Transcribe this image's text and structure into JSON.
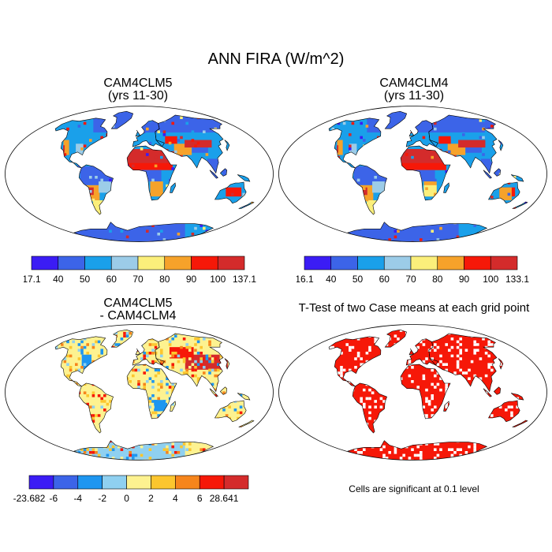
{
  "figure": {
    "title": "ANN FIRA (W/m^2)"
  },
  "panels": {
    "top_left": {
      "title_line1": "CAM4CLM5",
      "title_line2": "(yrs 11-30)"
    },
    "top_right": {
      "title_line1": "CAM4CLM4",
      "title_line2": "(yrs 11-30)"
    },
    "bottom_left": {
      "title_line1": "CAM4CLM5",
      "title_line2": "- CAM4CLM4"
    },
    "bottom_right": {
      "title": "T-Test of two Case means at each grid point",
      "note": "Cells are significant at 0.1 level"
    }
  },
  "colorbars": {
    "cb1": {
      "colors": [
        "#3b1cf5",
        "#3c64e8",
        "#1aa0ea",
        "#9ccce8",
        "#fbef7b",
        "#f6a22a",
        "#f61808",
        "#d42b2b"
      ],
      "labels": [
        "17.1",
        "40",
        "50",
        "60",
        "70",
        "80",
        "90",
        "100",
        "137.1"
      ]
    },
    "cb2": {
      "colors": [
        "#3b1cf5",
        "#3c64e8",
        "#1aa0ea",
        "#9ccce8",
        "#fbef7b",
        "#f6a22a",
        "#f61808",
        "#d42b2b"
      ],
      "labels": [
        "16.1",
        "40",
        "50",
        "60",
        "70",
        "80",
        "90",
        "100",
        "133.1"
      ]
    },
    "cb3": {
      "colors": [
        "#3b1cf5",
        "#3c64e8",
        "#1e96f0",
        "#8fd0f0",
        "#fdf290",
        "#fcc62e",
        "#f6851c",
        "#f61808",
        "#d42b2b"
      ],
      "labels": [
        "-23.682",
        "-6",
        "-4",
        "-2",
        "0",
        "2",
        "4",
        "6",
        "28.641"
      ]
    }
  }
}
